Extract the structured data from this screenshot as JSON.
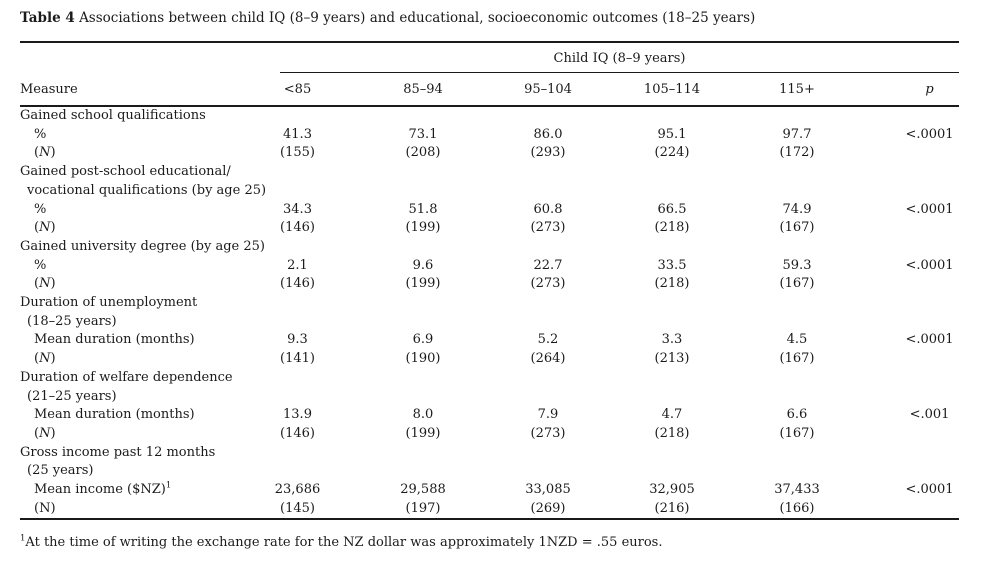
{
  "title": {
    "label": "Table 4",
    "text": "Associations between child IQ (8–9 years) and educational, socioeconomic outcomes (18–25 years)"
  },
  "table": {
    "spanner": "Child IQ (8–9 years)",
    "measure_header": "Measure",
    "columns": [
      "<85",
      "85–94",
      "95–104",
      "105–114",
      "115+"
    ],
    "p_header": "p",
    "rows": [
      {
        "indent": 0,
        "parts": [
          {
            "t": "Gained school qualifications"
          }
        ],
        "values": [
          "",
          "",
          "",
          "",
          "",
          ""
        ]
      },
      {
        "indent": 2,
        "parts": [
          {
            "t": "%"
          }
        ],
        "values": [
          "41.3",
          "73.1",
          "86.0",
          "95.1",
          "97.7",
          "<.0001"
        ]
      },
      {
        "indent": 2,
        "parts": [
          {
            "t": "("
          },
          {
            "t": "N",
            "i": true
          },
          {
            "t": ")"
          }
        ],
        "values": [
          "(155)",
          "(208)",
          "(293)",
          "(224)",
          "(172)",
          ""
        ]
      },
      {
        "indent": 0,
        "parts": [
          {
            "t": "Gained post-school educational/"
          }
        ],
        "values": [
          "",
          "",
          "",
          "",
          "",
          ""
        ]
      },
      {
        "indent": 1,
        "parts": [
          {
            "t": "vocational qualifications (by age 25)"
          }
        ],
        "values": [
          "",
          "",
          "",
          "",
          "",
          ""
        ]
      },
      {
        "indent": 2,
        "parts": [
          {
            "t": "%"
          }
        ],
        "values": [
          "34.3",
          "51.8",
          "60.8",
          "66.5",
          "74.9",
          "<.0001"
        ]
      },
      {
        "indent": 2,
        "parts": [
          {
            "t": "("
          },
          {
            "t": "N",
            "i": true
          },
          {
            "t": ")"
          }
        ],
        "values": [
          "(146)",
          "(199)",
          "(273)",
          "(218)",
          "(167)",
          ""
        ]
      },
      {
        "indent": 0,
        "parts": [
          {
            "t": "Gained university degree (by age 25)"
          }
        ],
        "values": [
          "",
          "",
          "",
          "",
          "",
          ""
        ]
      },
      {
        "indent": 2,
        "parts": [
          {
            "t": "%"
          }
        ],
        "values": [
          "2.1",
          "9.6",
          "22.7",
          "33.5",
          "59.3",
          "<.0001"
        ]
      },
      {
        "indent": 2,
        "parts": [
          {
            "t": "("
          },
          {
            "t": "N",
            "i": true
          },
          {
            "t": ")"
          }
        ],
        "values": [
          "(146)",
          "(199)",
          "(273)",
          "(218)",
          "(167)",
          ""
        ]
      },
      {
        "indent": 0,
        "parts": [
          {
            "t": "Duration of unemployment"
          }
        ],
        "values": [
          "",
          "",
          "",
          "",
          "",
          ""
        ]
      },
      {
        "indent": 1,
        "parts": [
          {
            "t": "(18–25 years)"
          }
        ],
        "values": [
          "",
          "",
          "",
          "",
          "",
          ""
        ]
      },
      {
        "indent": 2,
        "parts": [
          {
            "t": "Mean duration (months)"
          }
        ],
        "values": [
          "9.3",
          "6.9",
          "5.2",
          "3.3",
          "4.5",
          "<.0001"
        ]
      },
      {
        "indent": 2,
        "parts": [
          {
            "t": "("
          },
          {
            "t": "N",
            "i": true
          },
          {
            "t": ")"
          }
        ],
        "values": [
          "(141)",
          "(190)",
          "(264)",
          "(213)",
          "(167)",
          ""
        ]
      },
      {
        "indent": 0,
        "parts": [
          {
            "t": "Duration of welfare dependence"
          }
        ],
        "values": [
          "",
          "",
          "",
          "",
          "",
          ""
        ]
      },
      {
        "indent": 1,
        "parts": [
          {
            "t": "(21–25 years)"
          }
        ],
        "values": [
          "",
          "",
          "",
          "",
          "",
          ""
        ]
      },
      {
        "indent": 2,
        "parts": [
          {
            "t": "Mean duration (months)"
          }
        ],
        "values": [
          "13.9",
          "8.0",
          "7.9",
          "4.7",
          "6.6",
          "<.001"
        ]
      },
      {
        "indent": 2,
        "parts": [
          {
            "t": "("
          },
          {
            "t": "N",
            "i": true
          },
          {
            "t": ")"
          }
        ],
        "values": [
          "(146)",
          "(199)",
          "(273)",
          "(218)",
          "(167)",
          ""
        ]
      },
      {
        "indent": 0,
        "parts": [
          {
            "t": "Gross income past 12 months"
          }
        ],
        "values": [
          "",
          "",
          "",
          "",
          "",
          ""
        ]
      },
      {
        "indent": 1,
        "parts": [
          {
            "t": "(25 years)"
          }
        ],
        "values": [
          "",
          "",
          "",
          "",
          "",
          ""
        ]
      },
      {
        "indent": 2,
        "parts": [
          {
            "t": "Mean income ($NZ)"
          },
          {
            "t": "1",
            "sup": true
          }
        ],
        "values": [
          "23,686",
          "29,588",
          "33,085",
          "32,905",
          "37,433",
          "<.0001"
        ]
      },
      {
        "indent": 2,
        "parts": [
          {
            "t": "(N)"
          }
        ],
        "values": [
          "(145)",
          "(197)",
          "(269)",
          "(216)",
          "(166)",
          ""
        ]
      }
    ]
  },
  "footnote": {
    "marker": "1",
    "text": "At the time of writing the exchange rate for the NZ dollar was approximately 1NZD = .55 euros."
  },
  "colors": {
    "background": "#ffffff",
    "text": "#1a1a1a",
    "rule": "#1a1a1a"
  }
}
